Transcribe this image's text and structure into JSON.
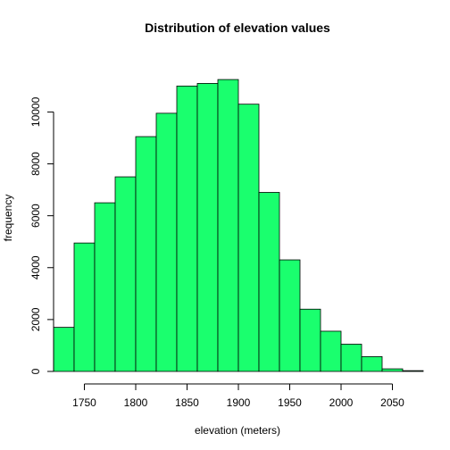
{
  "chart_data": {
    "type": "bar",
    "title": "Distribution of elevation values",
    "xlabel": "elevation (meters)",
    "ylabel": "frequency",
    "bar_color": "#1aff6e",
    "bar_edge_color": "#000000",
    "bin_edges": [
      1720,
      1740,
      1760,
      1780,
      1800,
      1820,
      1840,
      1860,
      1880,
      1900,
      1920,
      1940,
      1960,
      1980,
      2000,
      2020,
      2040,
      2060,
      2080
    ],
    "values": [
      1700,
      4950,
      6500,
      7500,
      9050,
      9950,
      11000,
      11100,
      11250,
      10300,
      6900,
      4300,
      2400,
      1550,
      1050,
      570,
      100,
      30
    ],
    "xlim": [
      1720,
      2080
    ],
    "ylim": [
      0,
      11700
    ],
    "x_ticks": [
      1750,
      1800,
      1850,
      1900,
      1950,
      2000,
      2050
    ],
    "y_ticks": [
      0,
      2000,
      4000,
      6000,
      8000,
      10000
    ],
    "grid": false
  }
}
